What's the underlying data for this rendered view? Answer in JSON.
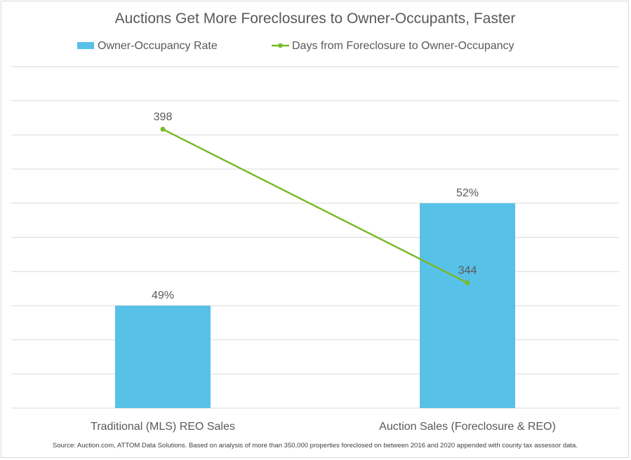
{
  "chart_data": {
    "type": "bar",
    "title": "Auctions Get More Foreclosures to Owner-Occupants, Faster",
    "categories": [
      "Traditional (MLS) REO Sales",
      "Auction Sales (Foreclosure & REO)"
    ],
    "series": [
      {
        "name": "Owner-Occupancy Rate",
        "kind": "bar",
        "axis": "primary",
        "values": [
          49,
          52
        ],
        "value_labels": [
          "49%",
          "52%"
        ],
        "color": "#58c1e7"
      },
      {
        "name": "Days from Foreclosure to Owner-Occupancy",
        "kind": "line",
        "axis": "secondary",
        "values": [
          398,
          344
        ],
        "value_labels": [
          "398",
          "344"
        ],
        "color": "#7ab929"
      }
    ],
    "ylim": [
      46,
      56
    ],
    "y2lim": [
      300,
      420
    ],
    "grid": true,
    "legend": "top",
    "source": "Source: Auction.com, ATTOM Data Solutions. Based on analysis of more than 350,000 properties foreclosed on between 2016 and 2020 appended with county tax assessor data."
  }
}
